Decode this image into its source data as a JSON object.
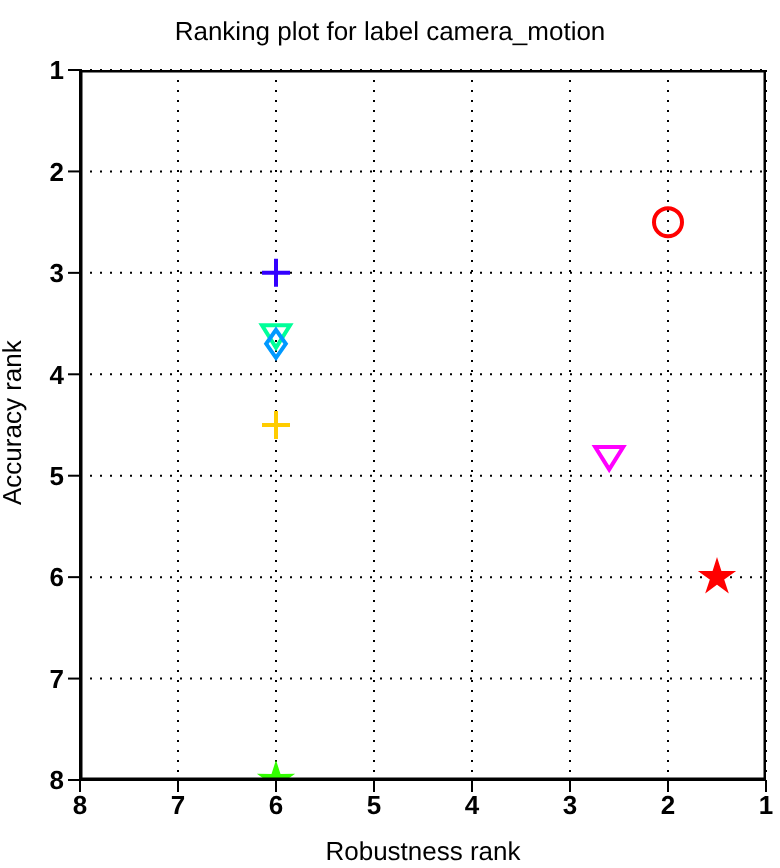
{
  "chart_data": {
    "type": "scatter",
    "title": "Ranking plot for label camera_motion",
    "xlabel": "Robustness rank",
    "ylabel": "Accuracy rank",
    "xlim": [
      8,
      1
    ],
    "ylim": [
      8,
      1
    ],
    "xticks": [
      8,
      7,
      6,
      5,
      4,
      3,
      2,
      1
    ],
    "yticks": [
      8,
      7,
      6,
      5,
      4,
      3,
      2,
      1
    ],
    "grid": true,
    "legend": false,
    "series": [
      {
        "x": [
          2
        ],
        "values": [
          2.5
        ],
        "color": "#ff0000",
        "marker": "circle"
      },
      {
        "x": [
          6
        ],
        "values": [
          3
        ],
        "color": "#3300ff",
        "marker": "cross"
      },
      {
        "x": [
          6
        ],
        "values": [
          3.6
        ],
        "color": "#00ff99",
        "marker": "triangle"
      },
      {
        "x": [
          6
        ],
        "values": [
          3.7
        ],
        "color": "#0099ff",
        "marker": "diamond"
      },
      {
        "x": [
          6
        ],
        "values": [
          4.5
        ],
        "color": "#ffcc00",
        "marker": "cross"
      },
      {
        "x": [
          2.6
        ],
        "values": [
          4.8
        ],
        "color": "#ff00ff",
        "marker": "triangle"
      },
      {
        "x": [
          1.5
        ],
        "values": [
          6
        ],
        "color": "#ff0000",
        "marker": "star"
      },
      {
        "x": [
          6
        ],
        "values": [
          8
        ],
        "color": "#33ff00",
        "marker": "star"
      }
    ]
  }
}
